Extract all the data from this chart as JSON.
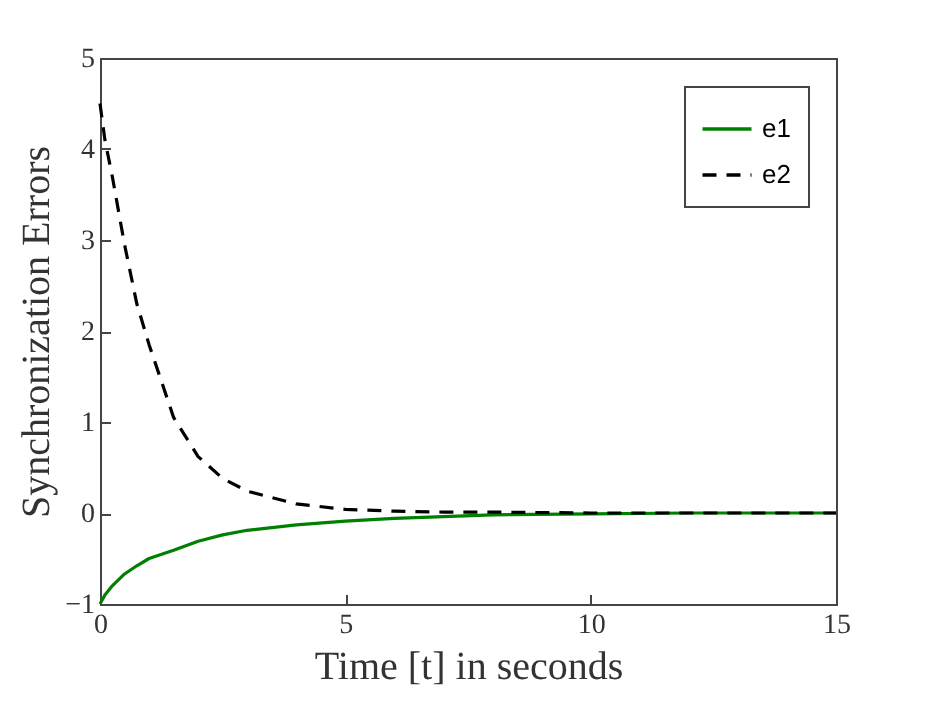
{
  "chart_data": {
    "type": "line",
    "xlabel": "Time [t] in seconds",
    "ylabel": "Synchronization Errors",
    "x": [
      0,
      0.1,
      0.25,
      0.5,
      0.75,
      1,
      1.5,
      2,
      2.5,
      3,
      4,
      5,
      6,
      7,
      8,
      10,
      12,
      15
    ],
    "series": [
      {
        "name": "e1",
        "color": "#007f00",
        "line_style": "solid",
        "values": [
          -1,
          -0.9,
          -0.8,
          -0.67,
          -0.58,
          -0.5,
          -0.41,
          -0.31,
          -0.24,
          -0.19,
          -0.13,
          -0.09,
          -0.06,
          -0.04,
          -0.02,
          -0.01,
          0,
          0
        ]
      },
      {
        "name": "e2",
        "color": "#000000",
        "line_style": "dashed",
        "values": [
          4.5,
          4.1,
          3.7,
          2.95,
          2.3,
          1.85,
          1.05,
          0.62,
          0.38,
          0.24,
          0.1,
          0.04,
          0.02,
          0.01,
          0.01,
          0,
          0,
          0
        ]
      }
    ],
    "xlim": [
      0,
      15
    ],
    "xticks": [
      0,
      5,
      10,
      15
    ],
    "ylim": [
      -1,
      5
    ],
    "yticks": [
      -1,
      0,
      1,
      2,
      3,
      4,
      5
    ],
    "grid": false,
    "legend": "top right",
    "marker": "none"
  }
}
